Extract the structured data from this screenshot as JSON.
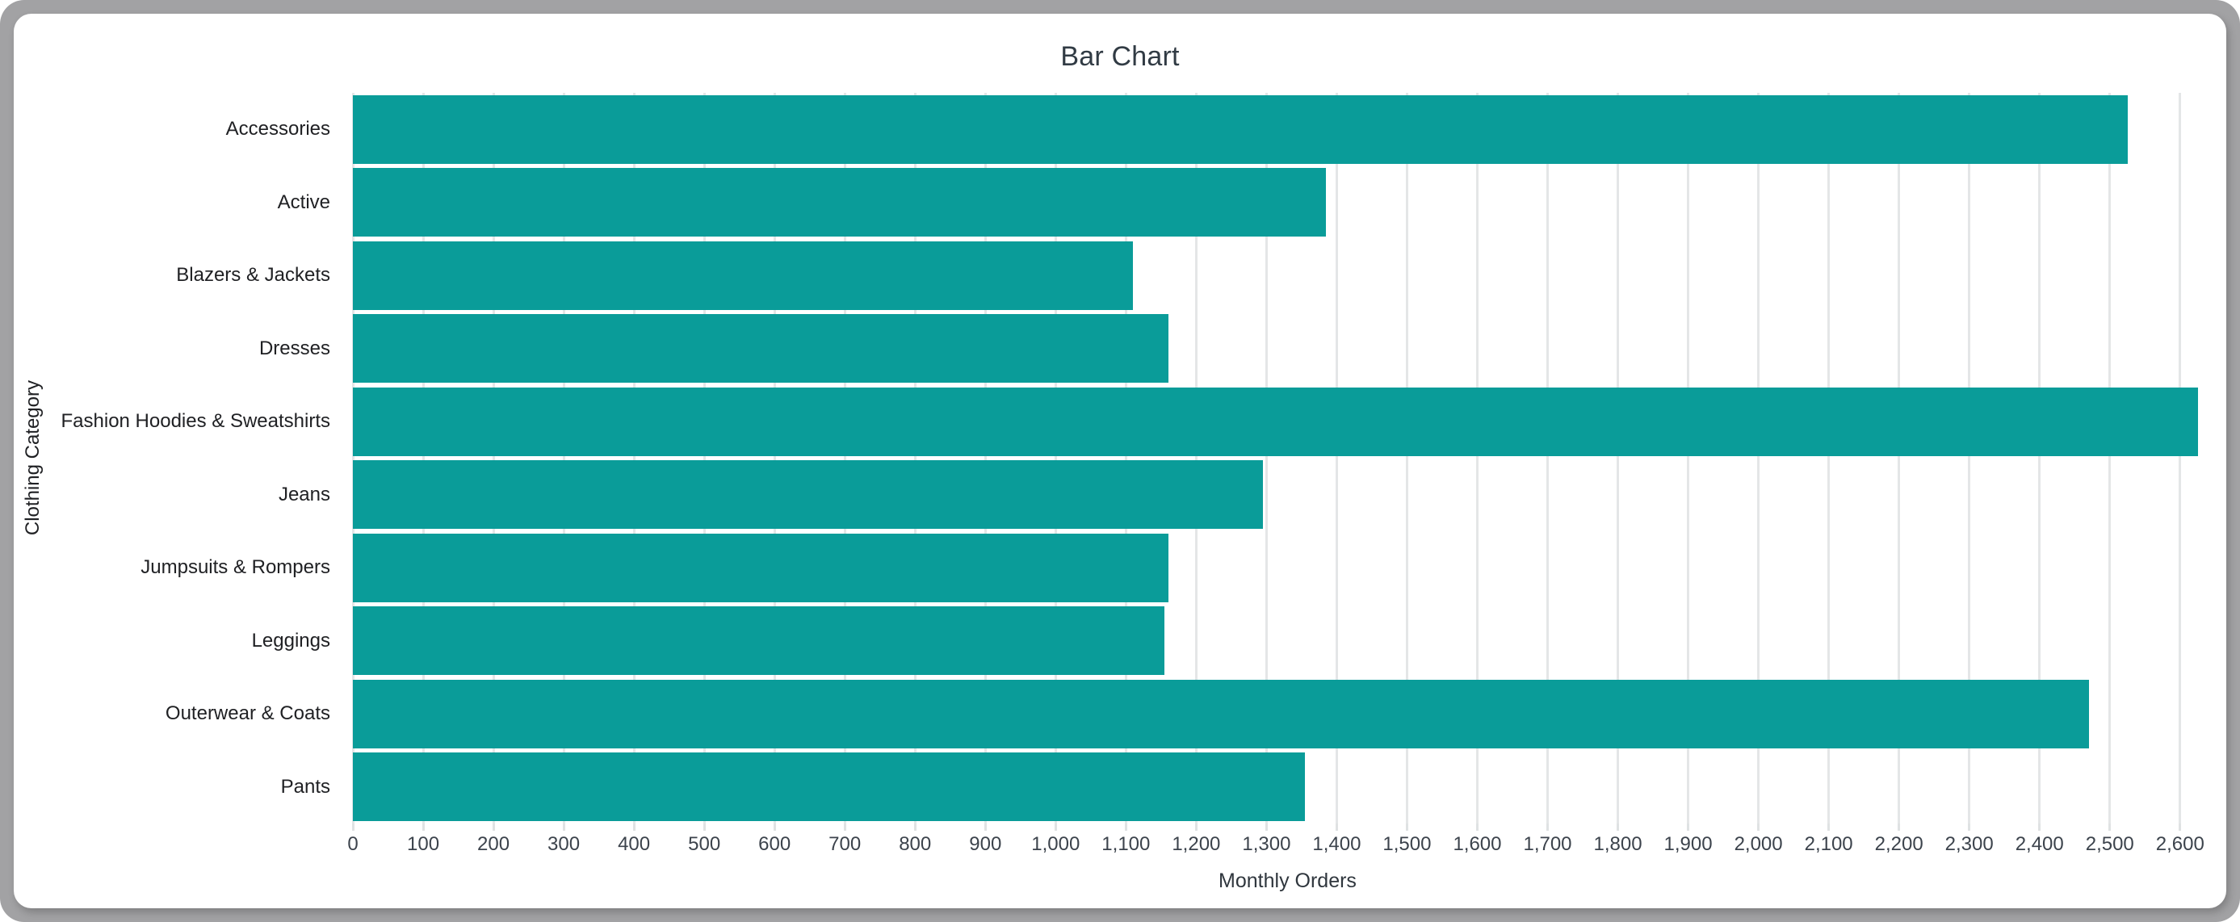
{
  "chart_data": {
    "type": "bar",
    "orientation": "horizontal",
    "title": "Bar Chart",
    "xlabel": "Monthly Orders",
    "ylabel": "Clothing Category",
    "categories": [
      "Accessories",
      "Active",
      "Blazers & Jackets",
      "Dresses",
      "Fashion Hoodies & Sweatshirts",
      "Jeans",
      "Jumpsuits & Rompers",
      "Leggings",
      "Outerwear & Coats",
      "Pants"
    ],
    "values": [
      2525,
      1385,
      1110,
      1160,
      2625,
      1295,
      1160,
      1155,
      2470,
      1355
    ],
    "xlim": [
      0,
      2660
    ],
    "x_tick_step": 100,
    "x_tick_labels": [
      "0",
      "100",
      "200",
      "300",
      "400",
      "500",
      "600",
      "700",
      "800",
      "900",
      "1,000",
      "1,100",
      "1,200",
      "1,300",
      "1,400",
      "1,500",
      "1,600",
      "1,700",
      "1,800",
      "1,900",
      "2,000",
      "2,100",
      "2,200",
      "2,300",
      "2,400",
      "2,500",
      "2,600"
    ],
    "grid": "vertical-gridlines",
    "legend": "none",
    "bar_color": "#0a9c99"
  }
}
